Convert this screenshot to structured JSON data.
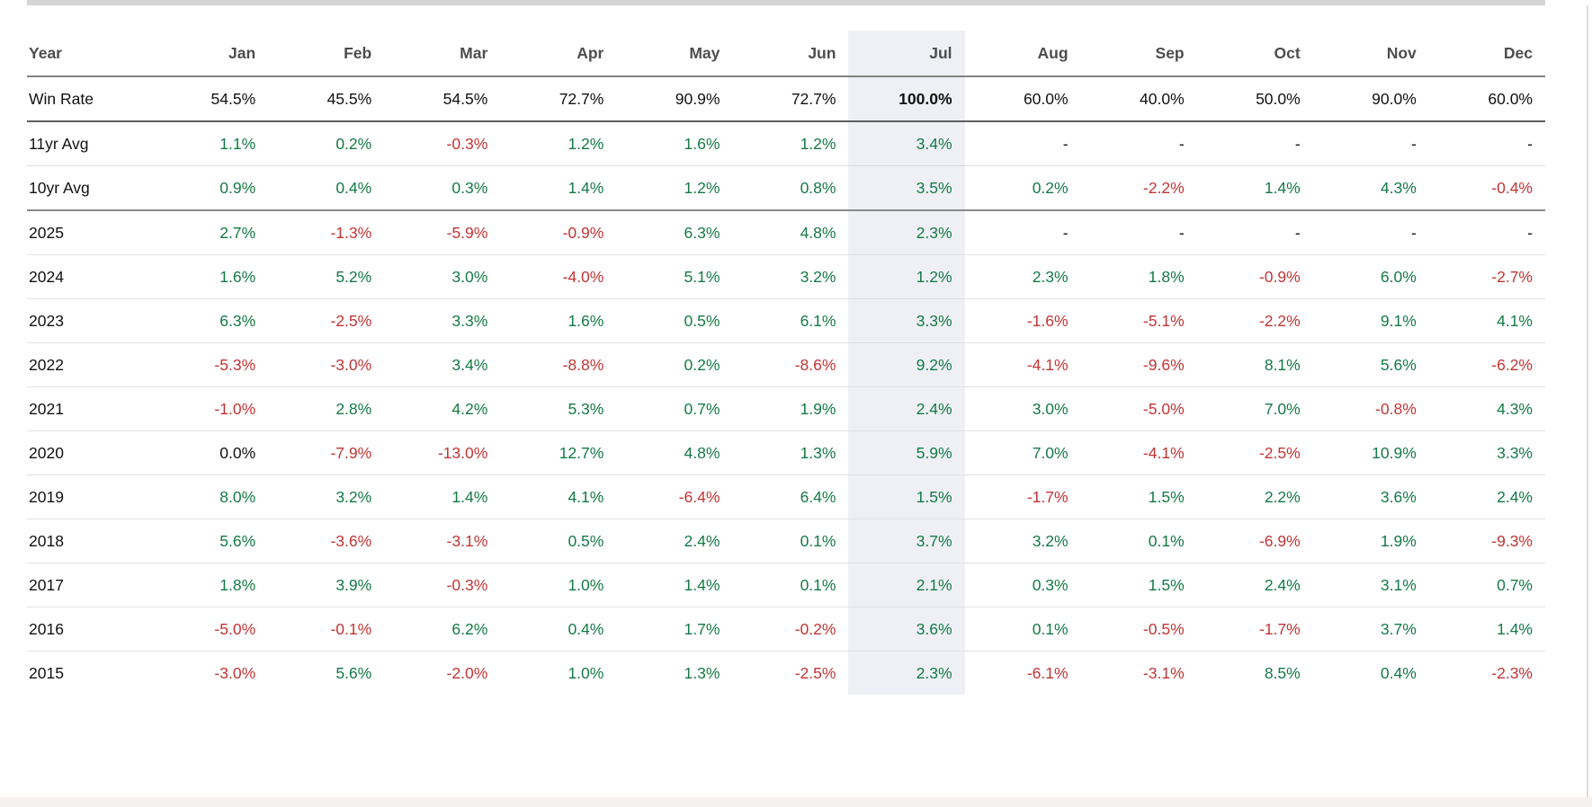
{
  "table": {
    "header": {
      "year_label": "Year",
      "months": [
        "Jan",
        "Feb",
        "Mar",
        "Apr",
        "May",
        "Jun",
        "Jul",
        "Aug",
        "Sep",
        "Oct",
        "Nov",
        "Dec"
      ]
    },
    "highlight_month_index": 6,
    "highlighted_month": "Jul",
    "rows": [
      {
        "label": "Win Rate",
        "type": "winrate",
        "values": [
          "54.5%",
          "45.5%",
          "54.5%",
          "72.7%",
          "90.9%",
          "72.7%",
          "100.0%",
          "60.0%",
          "40.0%",
          "50.0%",
          "90.0%",
          "60.0%"
        ]
      },
      {
        "label": "11yr Avg",
        "type": "avg-light",
        "values": [
          "1.1%",
          "0.2%",
          "-0.3%",
          "1.2%",
          "1.6%",
          "1.2%",
          "3.4%",
          "-",
          "-",
          "-",
          "-",
          "-"
        ]
      },
      {
        "label": "10yr Avg",
        "type": "avg-strong",
        "values": [
          "0.9%",
          "0.4%",
          "0.3%",
          "1.4%",
          "1.2%",
          "0.8%",
          "3.5%",
          "0.2%",
          "-2.2%",
          "1.4%",
          "4.3%",
          "-0.4%"
        ]
      },
      {
        "label": "2025",
        "type": "year",
        "values": [
          "2.7%",
          "-1.3%",
          "-5.9%",
          "-0.9%",
          "6.3%",
          "4.8%",
          "2.3%",
          "-",
          "-",
          "-",
          "-",
          "-"
        ]
      },
      {
        "label": "2024",
        "type": "year",
        "values": [
          "1.6%",
          "5.2%",
          "3.0%",
          "-4.0%",
          "5.1%",
          "3.2%",
          "1.2%",
          "2.3%",
          "1.8%",
          "-0.9%",
          "6.0%",
          "-2.7%"
        ]
      },
      {
        "label": "2023",
        "type": "year",
        "values": [
          "6.3%",
          "-2.5%",
          "3.3%",
          "1.6%",
          "0.5%",
          "6.1%",
          "3.3%",
          "-1.6%",
          "-5.1%",
          "-2.2%",
          "9.1%",
          "4.1%"
        ]
      },
      {
        "label": "2022",
        "type": "year",
        "values": [
          "-5.3%",
          "-3.0%",
          "3.4%",
          "-8.8%",
          "0.2%",
          "-8.6%",
          "9.2%",
          "-4.1%",
          "-9.6%",
          "8.1%",
          "5.6%",
          "-6.2%"
        ]
      },
      {
        "label": "2021",
        "type": "year",
        "values": [
          "-1.0%",
          "2.8%",
          "4.2%",
          "5.3%",
          "0.7%",
          "1.9%",
          "2.4%",
          "3.0%",
          "-5.0%",
          "7.0%",
          "-0.8%",
          "4.3%"
        ]
      },
      {
        "label": "2020",
        "type": "year",
        "values": [
          "0.0%",
          "-7.9%",
          "-13.0%",
          "12.7%",
          "4.8%",
          "1.3%",
          "5.9%",
          "7.0%",
          "-4.1%",
          "-2.5%",
          "10.9%",
          "3.3%"
        ]
      },
      {
        "label": "2019",
        "type": "year",
        "values": [
          "8.0%",
          "3.2%",
          "1.4%",
          "4.1%",
          "-6.4%",
          "6.4%",
          "1.5%",
          "-1.7%",
          "1.5%",
          "2.2%",
          "3.6%",
          "2.4%"
        ]
      },
      {
        "label": "2018",
        "type": "year",
        "values": [
          "5.6%",
          "-3.6%",
          "-3.1%",
          "0.5%",
          "2.4%",
          "0.1%",
          "3.7%",
          "3.2%",
          "0.1%",
          "-6.9%",
          "1.9%",
          "-9.3%"
        ]
      },
      {
        "label": "2017",
        "type": "year",
        "values": [
          "1.8%",
          "3.9%",
          "-0.3%",
          "1.0%",
          "1.4%",
          "0.1%",
          "2.1%",
          "0.3%",
          "1.5%",
          "2.4%",
          "3.1%",
          "0.7%"
        ]
      },
      {
        "label": "2016",
        "type": "year",
        "values": [
          "-5.0%",
          "-0.1%",
          "6.2%",
          "0.4%",
          "1.7%",
          "-0.2%",
          "3.6%",
          "0.1%",
          "-0.5%",
          "-1.7%",
          "3.7%",
          "1.4%"
        ]
      },
      {
        "label": "2015",
        "type": "year",
        "values": [
          "-3.0%",
          "5.6%",
          "-2.0%",
          "1.0%",
          "1.3%",
          "-2.5%",
          "2.3%",
          "-6.1%",
          "-3.1%",
          "8.5%",
          "0.4%",
          "-2.3%"
        ]
      }
    ]
  },
  "colors": {
    "positive": "#147a45",
    "negative": "#c43434",
    "neutral": "#111111",
    "highlight_bg": "#eef0f5",
    "header_text": "#4d4d4d",
    "top_rule": "#d5d5d5",
    "footer_strip": "#f5f1ee"
  }
}
